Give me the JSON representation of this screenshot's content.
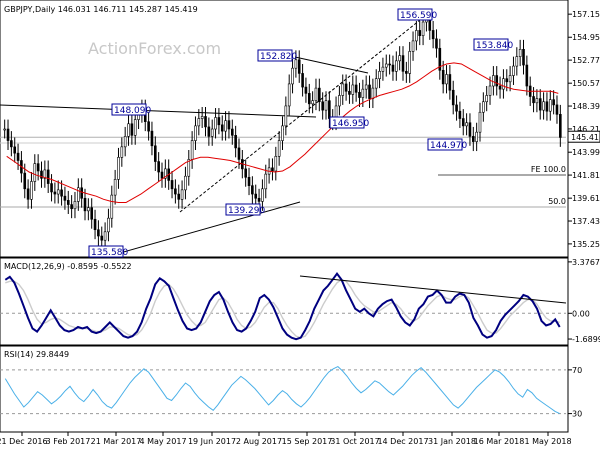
{
  "chart_data": [
    {
      "type": "candlestick",
      "panel": "price",
      "header": "GBPJPY,Daily 146.031 146.711 145.287 145.419",
      "watermark": "ActionForex.com",
      "last_price_label": "145.419",
      "ylim": [
        134.0,
        158.5
      ],
      "y_ticks": [
        "157.150",
        "154.950",
        "152.770",
        "150.570",
        "148.390",
        "146.210",
        "143.990",
        "141.810",
        "139.610",
        "137.430",
        "135.250"
      ],
      "x_tick_labels": [
        "21 Dec 2016",
        "3 Feb 2017",
        "21 Mar 2017",
        "4 May 2017",
        "19 Jun 2017",
        "2 Aug 2017",
        "15 Sep 2017",
        "31 Oct 2017",
        "14 Dec 2017",
        "31 Jan 2018",
        "16 Mar 2018",
        "1 May 2018"
      ],
      "callouts": [
        "148.090",
        "135.580",
        "152.820",
        "139.290",
        "146.950",
        "156.590",
        "144.970",
        "153.840"
      ],
      "levels": [
        "FE 100.0",
        "50.0"
      ],
      "series": [
        {
          "name": "price",
          "values": [
            146.2,
            145.1,
            144.5,
            143.9,
            143.2,
            142.0,
            140.5,
            139.5,
            141.2,
            142.9,
            142.2,
            141.5,
            142.3,
            141.0,
            140.2,
            140.0,
            140.4,
            139.8,
            139.4,
            139.0,
            138.6,
            139.3,
            140.6,
            139.6,
            138.4,
            138.7,
            137.6,
            136.6,
            136.0,
            135.6,
            136.4,
            137.7,
            139.9,
            141.4,
            143.5,
            144.5,
            145.5,
            146.7,
            145.6,
            147.1,
            147.7,
            148.1,
            146.9,
            146.0,
            144.6,
            143.1,
            142.1,
            141.5,
            142.4,
            141.3,
            140.5,
            140.0,
            139.5,
            140.4,
            141.7,
            143.3,
            145.1,
            146.5,
            147.2,
            147.4,
            146.4,
            145.5,
            146.2,
            147.3,
            146.6,
            146.0,
            147.0,
            146.2,
            145.6,
            144.4,
            143.3,
            142.4,
            141.6,
            140.8,
            140.0,
            139.6,
            139.3,
            140.5,
            141.9,
            142.5,
            142.2,
            143.6,
            145.1,
            146.5,
            148.4,
            150.5,
            152.0,
            152.8,
            151.5,
            150.2,
            149.6,
            148.6,
            148.9,
            150.1,
            148.8,
            148.0,
            148.9,
            147.2,
            147.0,
            148.4,
            149.4,
            150.5,
            149.8,
            149.5,
            150.4,
            149.7,
            149.2,
            150.0,
            150.4,
            149.1,
            150.1,
            151.0,
            151.7,
            152.1,
            152.4,
            152.3,
            151.7,
            152.7,
            153.2,
            151.7,
            151.5,
            153.6,
            154.6,
            155.6,
            155.1,
            156.4,
            156.6,
            155.6,
            154.8,
            153.9,
            151.8,
            150.5,
            151.4,
            149.9,
            148.5,
            147.9,
            147.2,
            146.5,
            146.8,
            145.5,
            145.0,
            145.9,
            147.8,
            148.8,
            149.4,
            150.3,
            151.3,
            150.3,
            150.0,
            151.0,
            150.7,
            151.3,
            152.2,
            153.1,
            153.8,
            152.3,
            150.3,
            149.3,
            148.7,
            149.1,
            148.0,
            148.8,
            147.9,
            149.0,
            148.5,
            147.6,
            145.4
          ]
        },
        {
          "name": "EMA",
          "values": [
            143.6,
            143.1,
            142.6,
            142.1,
            141.8,
            141.6,
            141.4,
            141.1,
            140.8,
            140.5,
            140.2,
            140.0,
            139.8,
            139.5,
            139.3,
            139.2,
            139.2,
            139.6,
            140.0,
            140.5,
            141.0,
            141.5,
            142.0,
            142.5,
            143.0,
            143.3,
            143.5,
            143.5,
            143.4,
            143.3,
            143.2,
            143.0,
            142.8,
            142.6,
            142.4,
            142.2,
            142.1,
            142.2,
            142.6,
            143.2,
            143.8,
            144.5,
            145.2,
            145.9,
            146.6,
            147.3,
            147.9,
            148.4,
            148.8,
            149.1,
            149.4,
            149.6,
            149.8,
            150.0,
            150.3,
            150.7,
            151.2,
            151.7,
            152.1,
            152.4,
            152.5,
            152.4,
            152.0,
            151.6,
            151.2,
            150.8,
            150.5,
            150.2,
            150.0,
            149.9,
            149.8,
            149.8,
            149.8,
            149.8,
            149.6
          ]
        }
      ]
    },
    {
      "type": "line",
      "panel": "macd",
      "header": "MACD(12,26,9) -0.8595 -0.5522",
      "ylim": [
        -1.95,
        3.5
      ],
      "y_ticks": [
        "3.3767",
        "0.00",
        "-1.6899"
      ],
      "series": [
        {
          "name": "MACD",
          "values": [
            2.2,
            2.4,
            2.0,
            1.3,
            0.5,
            -0.3,
            -1.0,
            -1.2,
            -0.8,
            -0.3,
            0.2,
            -0.3,
            -0.8,
            -1.1,
            -1.2,
            -1.1,
            -0.9,
            -1.0,
            -0.9,
            -1.2,
            -1.3,
            -1.2,
            -0.9,
            -0.6,
            -0.9,
            -1.2,
            -1.5,
            -1.6,
            -1.5,
            -1.2,
            -0.6,
            0.3,
            1.0,
            1.9,
            2.3,
            2.1,
            1.8,
            1.0,
            0.2,
            -0.5,
            -1.0,
            -1.1,
            -1.0,
            -0.6,
            0.1,
            0.8,
            1.2,
            1.4,
            0.9,
            0.1,
            -0.6,
            -1.1,
            -1.2,
            -1.0,
            -0.5,
            0.1,
            1.0,
            1.2,
            0.9,
            0.4,
            -0.3,
            -1.0,
            -1.4,
            -1.6,
            -1.7,
            -1.6,
            -1.1,
            -0.5,
            0.3,
            0.9,
            1.5,
            1.8,
            2.2,
            2.6,
            2.2,
            1.5,
            0.9,
            0.3,
            0.1,
            0.3,
            0.0,
            -0.2,
            0.3,
            0.6,
            0.8,
            0.9,
            0.4,
            -0.2,
            -0.6,
            -0.8,
            -0.4,
            0.3,
            0.6,
            1.1,
            1.2,
            1.5,
            1.2,
            0.7,
            0.7,
            1.1,
            1.3,
            1.2,
            0.7,
            -0.3,
            -0.8,
            -1.4,
            -1.6,
            -1.5,
            -1.1,
            -0.5,
            -0.1,
            0.2,
            0.5,
            0.8,
            1.2,
            1.1,
            0.8,
            0.3,
            -0.5,
            -0.8,
            -0.7,
            -0.4,
            -0.9
          ]
        },
        {
          "name": "Signal",
          "values": [
            2.0,
            2.1,
            2.1,
            1.9,
            1.5,
            0.9,
            0.2,
            -0.4,
            -0.7,
            -0.6,
            -0.4,
            -0.3,
            -0.4,
            -0.6,
            -0.8,
            -0.9,
            -1.0,
            -1.0,
            -1.0,
            -1.1,
            -1.2,
            -1.2,
            -1.1,
            -0.9,
            -0.9,
            -1.0,
            -1.2,
            -1.4,
            -1.5,
            -1.4,
            -1.1,
            -0.6,
            0.0,
            0.8,
            1.4,
            1.8,
            1.9,
            1.6,
            1.1,
            0.5,
            -0.1,
            -0.5,
            -0.8,
            -0.8,
            -0.6,
            -0.1,
            0.4,
            0.9,
            1.0,
            0.7,
            0.2,
            -0.4,
            -0.8,
            -1.0,
            -0.9,
            -0.6,
            -0.1,
            0.4,
            0.7,
            0.7,
            0.3,
            -0.3,
            -0.8,
            -1.2,
            -1.5,
            -1.6,
            -1.5,
            -1.1,
            -0.6,
            0.0,
            0.6,
            1.1,
            1.6,
            2.0,
            2.2,
            2.1,
            1.7,
            1.2,
            0.8,
            0.5,
            0.3,
            0.1,
            0.1,
            0.3,
            0.5,
            0.7,
            0.6,
            0.3,
            -0.1,
            -0.4,
            -0.5,
            -0.3,
            0.1,
            0.5,
            0.8,
            1.1,
            1.2,
            1.0,
            0.9,
            0.9,
            1.1,
            1.2,
            1.0,
            0.5,
            0.0,
            -0.6,
            -1.1,
            -1.3,
            -1.3,
            -1.0,
            -0.6,
            -0.2,
            0.1,
            0.4,
            0.7,
            0.9,
            0.9,
            0.6,
            0.1,
            -0.3,
            -0.5,
            -0.5,
            -0.6
          ]
        }
      ]
    },
    {
      "type": "line",
      "panel": "rsi",
      "header": "RSI(14) 29.8449",
      "ylim": [
        15,
        90
      ],
      "y_ticks": [
        "70",
        "30"
      ],
      "series": [
        {
          "name": "RSI",
          "values": [
            62,
            55,
            48,
            42,
            36,
            40,
            45,
            50,
            47,
            43,
            39,
            42,
            46,
            51,
            55,
            49,
            44,
            41,
            46,
            52,
            47,
            41,
            37,
            35,
            40,
            46,
            52,
            58,
            63,
            67,
            71,
            68,
            62,
            56,
            50,
            44,
            42,
            47,
            53,
            58,
            55,
            49,
            44,
            40,
            36,
            33,
            38,
            44,
            50,
            56,
            60,
            64,
            61,
            57,
            53,
            48,
            43,
            38,
            42,
            47,
            51,
            48,
            43,
            39,
            36,
            40,
            45,
            51,
            57,
            63,
            68,
            71,
            73,
            69,
            64,
            58,
            53,
            49,
            52,
            56,
            60,
            58,
            54,
            50,
            47,
            51,
            55,
            60,
            65,
            69,
            72,
            68,
            63,
            58,
            53,
            48,
            43,
            38,
            35,
            39,
            44,
            49,
            54,
            58,
            62,
            66,
            70,
            68,
            64,
            59,
            53,
            48,
            45,
            52,
            49,
            44,
            41,
            38,
            35,
            32,
            30
          ]
        }
      ]
    }
  ]
}
